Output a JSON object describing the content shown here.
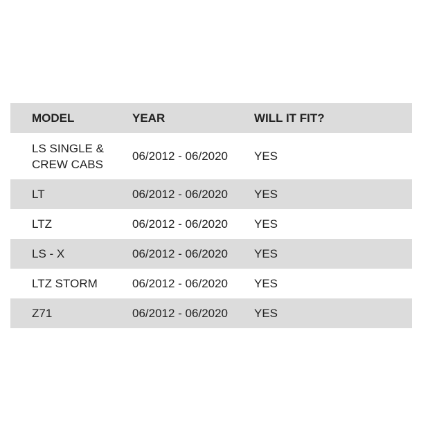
{
  "headers": [
    "MODEL",
    "YEAR",
    "WILL IT FIT?"
  ],
  "rows": [
    {
      "model": "LS SINGLE & CREW CABS",
      "year": "06/2012 - 06/2020",
      "fit": "YES"
    },
    {
      "model": "LT",
      "year": "06/2012 - 06/2020",
      "fit": "YES"
    },
    {
      "model": "LTZ",
      "year": "06/2012 - 06/2020",
      "fit": "YES"
    },
    {
      "model": "LS - X",
      "year": "06/2012 - 06/2020",
      "fit": "YES"
    },
    {
      "model": "LTZ STORM",
      "year": "06/2012 - 06/2020",
      "fit": "YES"
    },
    {
      "model": "Z71",
      "year": "06/2012 - 06/2020",
      "fit": "YES"
    }
  ],
  "colors": {
    "stripe": "#dcdcdc",
    "text": "#222222"
  }
}
